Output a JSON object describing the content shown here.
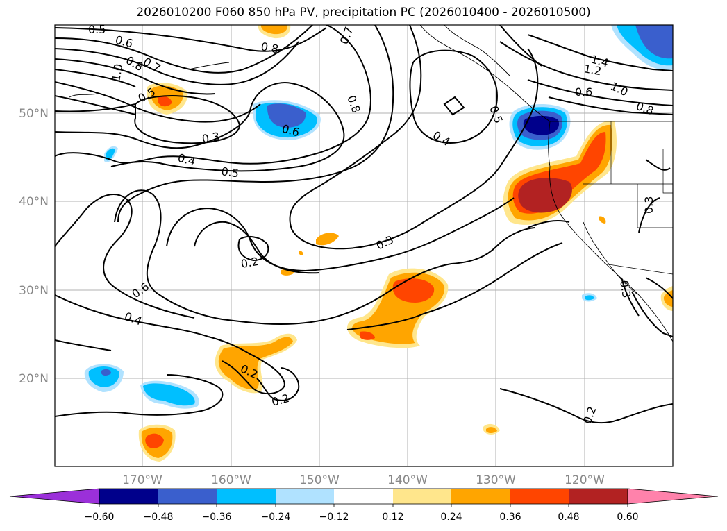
{
  "title": "2026010200 F060 850 hPa PV, precipitation PC (2026010400 - 2026010500)",
  "lon_ticks": [
    "170°W",
    "160°W",
    "150°W",
    "140°W",
    "130°W",
    "120°W"
  ],
  "lat_ticks": [
    "50°N",
    "40°N",
    "30°N",
    "20°N"
  ],
  "colorbar": {
    "ticks": [
      "−0.60",
      "−0.48",
      "−0.36",
      "−0.24",
      "−0.12",
      "0.12",
      "0.24",
      "0.36",
      "0.48",
      "0.60"
    ],
    "colors": [
      "#9b30d9",
      "#00008b",
      "#3a5fcd",
      "#00bfff",
      "#b0e2ff",
      "#ffffff",
      "#ffe68c",
      "#ffa500",
      "#ff4500",
      "#b22222",
      "#ff82ab"
    ]
  },
  "contour_labels": [
    {
      "text": "0.5"
    },
    {
      "text": "0.6"
    },
    {
      "text": "0.7"
    },
    {
      "text": "0.8"
    },
    {
      "text": "1.0"
    },
    {
      "text": "0.5"
    },
    {
      "text": "0.3"
    },
    {
      "text": "0.4"
    },
    {
      "text": "0.5"
    },
    {
      "text": "0.6"
    },
    {
      "text": "0.8"
    },
    {
      "text": "0.7"
    },
    {
      "text": "0.8"
    },
    {
      "text": "0.4"
    },
    {
      "text": "0.5"
    },
    {
      "text": "1.4"
    },
    {
      "text": "1.2"
    },
    {
      "text": "1.0"
    },
    {
      "text": "0.6"
    },
    {
      "text": "0.8"
    },
    {
      "text": "0.3"
    },
    {
      "text": "0.2"
    },
    {
      "text": "0.6"
    },
    {
      "text": "0.4"
    },
    {
      "text": "0.2"
    },
    {
      "text": "0.2"
    },
    {
      "text": "0.2"
    },
    {
      "text": "0.3"
    },
    {
      "text": "0.3"
    }
  ]
}
